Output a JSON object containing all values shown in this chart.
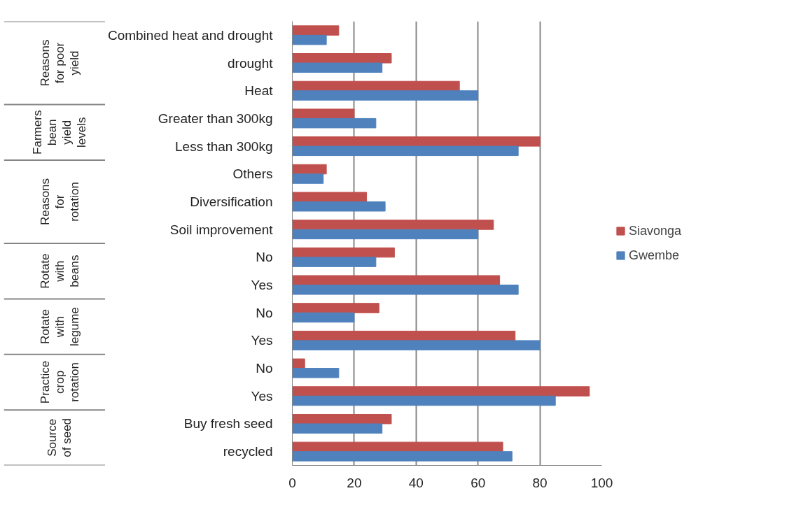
{
  "chart_data": {
    "type": "bar",
    "orientation": "horizontal",
    "categories": [
      "Combined heat and drought",
      "drought",
      "Heat",
      "Greater than 300kg",
      "Less than 300kg",
      "Others",
      "Diversification",
      "Soil improvement",
      "No",
      "Yes",
      "No",
      "Yes",
      "No",
      "Yes",
      "Buy fresh seed",
      "recycled"
    ],
    "series": [
      {
        "name": "Siavonga",
        "color": "#c0504d",
        "values": [
          15,
          32,
          54,
          20,
          80,
          11,
          24,
          65,
          33,
          67,
          28,
          72,
          4,
          96,
          32,
          68
        ]
      },
      {
        "name": "Gwembe",
        "color": "#4f81bd",
        "values": [
          11,
          29,
          60,
          27,
          73,
          10,
          30,
          60,
          27,
          73,
          20,
          80,
          15,
          85,
          29,
          71
        ]
      }
    ],
    "annotations": [
      "Reasons for poor yield",
      "Farmers bean yield levels",
      "Reasons for rotation",
      "Rotate with beans",
      "Rotate with legume",
      "Practice crop rotation",
      "Source of seed"
    ],
    "xlim": [
      0,
      100
    ],
    "xticks": [
      0,
      20,
      40,
      60,
      80,
      100
    ],
    "grid": "x",
    "legend": "right"
  }
}
